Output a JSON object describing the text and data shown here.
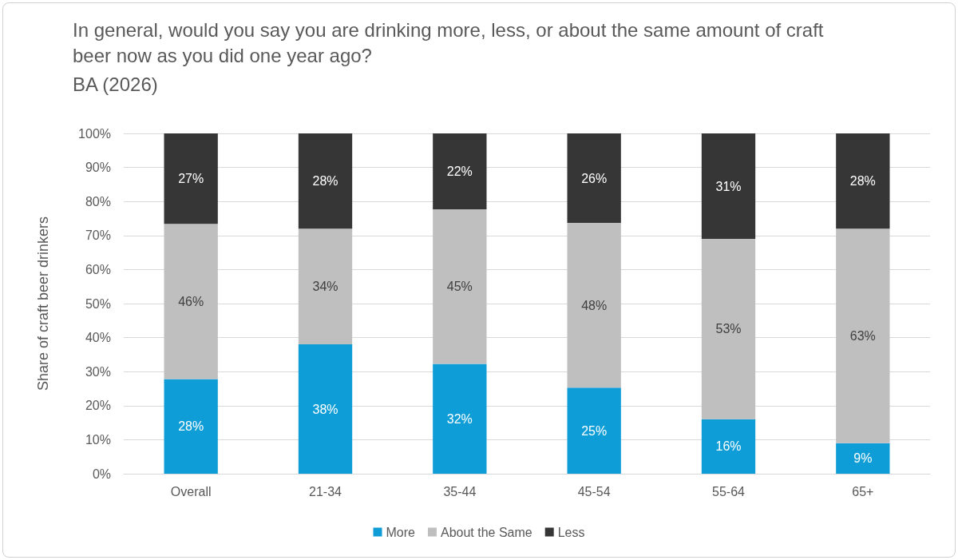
{
  "chart_data": {
    "type": "bar",
    "stacked": true,
    "title": "In general, would you say you are drinking more, less, or about the same amount of craft beer now as you did one year ago?",
    "subtitle": "BA (2026)",
    "ylabel": "Share of craft beer drinkers",
    "categories": [
      "Overall",
      "21-34",
      "35-44",
      "45-54",
      "55-64",
      "65+"
    ],
    "series": [
      {
        "name": "More",
        "color": "#0e9dd6",
        "values": [
          27.8,
          38,
          32.3,
          25.3,
          16,
          9
        ],
        "value_labels": [
          "28%",
          "38%",
          "32%",
          "25%",
          "16%",
          "9%"
        ]
      },
      {
        "name": "About the Same",
        "color": "#bfbfbf",
        "values": [
          45.6,
          34,
          45.4,
          48.4,
          53,
          63
        ],
        "value_labels": [
          "46%",
          "34%",
          "45%",
          "48%",
          "53%",
          "63%"
        ]
      },
      {
        "name": "Less",
        "color": "#363636",
        "values": [
          26.6,
          28,
          22.3,
          26.3,
          31,
          28
        ],
        "value_labels": [
          "27%",
          "28%",
          "22%",
          "26%",
          "31%",
          "28%"
        ]
      }
    ],
    "ylim": [
      0,
      100
    ],
    "yticks": [
      {
        "value": 0,
        "label": "0%"
      },
      {
        "value": 10,
        "label": "10%"
      },
      {
        "value": 20,
        "label": "20%"
      },
      {
        "value": 30,
        "label": "30%"
      },
      {
        "value": 40,
        "label": "40%"
      },
      {
        "value": 50,
        "label": "50%"
      },
      {
        "value": 60,
        "label": "60%"
      },
      {
        "value": 70,
        "label": "70%"
      },
      {
        "value": 80,
        "label": "80%"
      },
      {
        "value": 90,
        "label": "90%"
      },
      {
        "value": 100,
        "label": "100%"
      }
    ],
    "grid": "y",
    "legend": "bottom"
  }
}
